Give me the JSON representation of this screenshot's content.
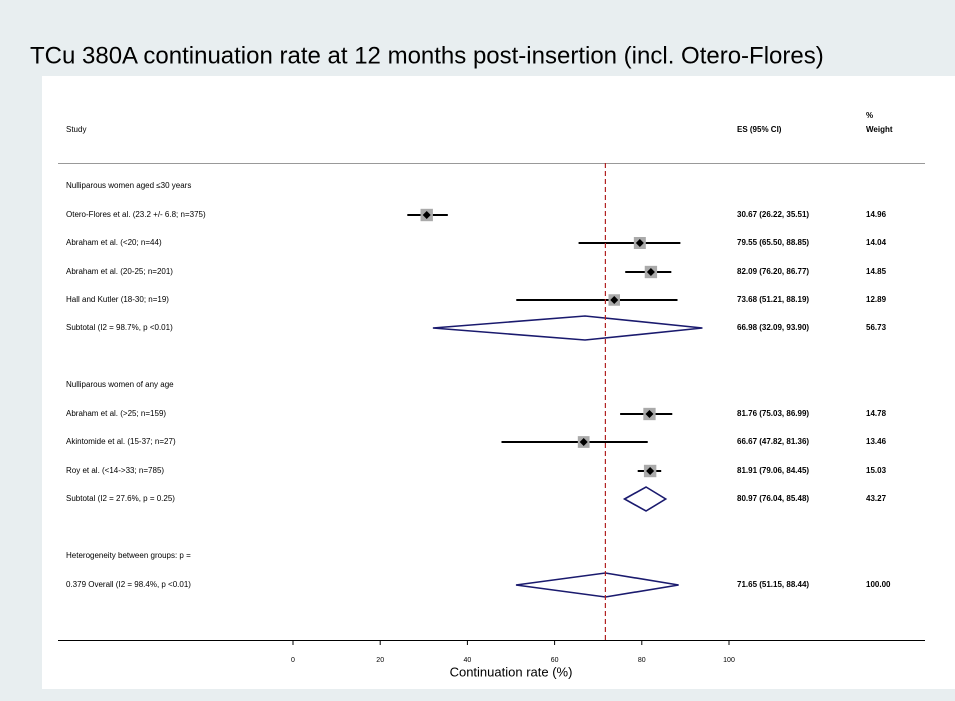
{
  "chart_data": {
    "type": "forest",
    "title": "TCu 380A continuation rate at 12 months post-insertion (incl. Otero-Flores)",
    "x_label": "Continuation rate (%)",
    "xlim": [
      0,
      100
    ],
    "xticks": [
      0,
      20,
      40,
      60,
      80,
      100
    ],
    "headers": {
      "weight_top": "%",
      "study": "Study",
      "es": "ES (95% CI)",
      "weight": "Weight"
    },
    "rows": [
      {
        "kind": "group",
        "label": "Nulliparous women aged ≤30 years"
      },
      {
        "kind": "study",
        "label": "Otero-Flores et al. (23.2 +/- 6.8; n=375)",
        "es": 30.67,
        "lo": 26.22,
        "hi": 35.51,
        "ci_label": "30.67 (26.22, 35.51)",
        "weight": 14.96
      },
      {
        "kind": "study",
        "label": "Abraham et al. (<20; n=44)",
        "es": 79.55,
        "lo": 65.5,
        "hi": 88.85,
        "ci_label": "79.55 (65.50, 88.85)",
        "weight": 14.04
      },
      {
        "kind": "study",
        "label": "Abraham et al. (20-25; n=201)",
        "es": 82.09,
        "lo": 76.2,
        "hi": 86.77,
        "ci_label": "82.09 (76.20, 86.77)",
        "weight": 14.85
      },
      {
        "kind": "study",
        "label": "Hall and Kutler (18-30; n=19)",
        "es": 73.68,
        "lo": 51.21,
        "hi": 88.19,
        "ci_label": "73.68 (51.21, 88.19)",
        "weight": 12.89
      },
      {
        "kind": "subtotal",
        "label": "Subtotal  (I2 = 98.7%, p <0.01)",
        "es": 66.98,
        "lo": 32.09,
        "hi": 93.9,
        "ci_label": "66.98 (32.09, 93.90)",
        "weight": 56.73
      },
      {
        "kind": "group",
        "label": "Nulliparous women of any age"
      },
      {
        "kind": "study",
        "label": "Abraham et al. (>25; n=159)",
        "es": 81.76,
        "lo": 75.03,
        "hi": 86.99,
        "ci_label": "81.76 (75.03, 86.99)",
        "weight": 14.78
      },
      {
        "kind": "study",
        "label": "Akintomide et al. (15-37; n=27)",
        "es": 66.67,
        "lo": 47.82,
        "hi": 81.36,
        "ci_label": "66.67 (47.82, 81.36)",
        "weight": 13.46
      },
      {
        "kind": "study",
        "label": "Roy et al. (<14->33; n=785)",
        "es": 81.91,
        "lo": 79.06,
        "hi": 84.45,
        "ci_label": "81.91 (79.06, 84.45)",
        "weight": 15.03
      },
      {
        "kind": "subtotal",
        "label": "Subtotal  (I2 = 27.6%, p = 0.25)",
        "es": 80.97,
        "lo": 76.04,
        "hi": 85.48,
        "ci_label": "80.97 (76.04, 85.48)",
        "weight": 43.27
      },
      {
        "kind": "group",
        "label": "Heterogeneity between groups: p ="
      },
      {
        "kind": "overall",
        "label": "0.379 Overall  (I2 = 98.4%, p <0.01)",
        "es": 71.65,
        "lo": 51.15,
        "hi": 88.44,
        "ci_label": "71.65 (51.15, 88.44)",
        "weight": {
          "value": 100,
          "label": "100.00"
        }
      }
    ]
  }
}
